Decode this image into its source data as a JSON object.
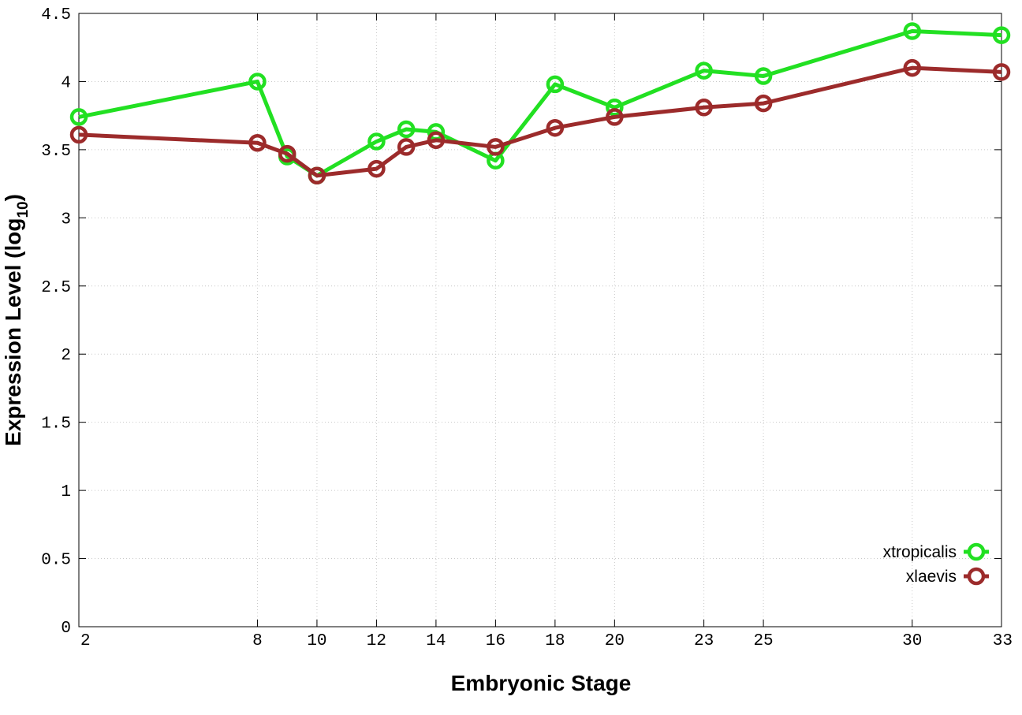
{
  "chart_data": {
    "type": "line",
    "title": "",
    "xlabel": "Embryonic Stage",
    "ylabel": {
      "main": "Expression Level (log",
      "subscript": "10",
      "close": ")"
    },
    "x": [
      2,
      8,
      9,
      10,
      12,
      13,
      14,
      16,
      18,
      20,
      23,
      25,
      30,
      33
    ],
    "xticks": [
      "2",
      "8",
      "10",
      "12",
      "14",
      "16",
      "18",
      "20",
      "23",
      "25",
      "30",
      "33"
    ],
    "yticks": [
      "0",
      "0.5",
      "1",
      "1.5",
      "2",
      "2.5",
      "3",
      "3.5",
      "4",
      "4.5"
    ],
    "ylim": [
      0,
      4.5
    ],
    "xlim": [
      2,
      33
    ],
    "grid": true,
    "legend_position": "bottom-right",
    "series": [
      {
        "name": "xtropicalis",
        "color": "#22e022",
        "values": [
          3.74,
          4.0,
          3.45,
          3.31,
          3.56,
          3.65,
          3.63,
          3.42,
          3.98,
          3.81,
          4.08,
          4.04,
          4.37,
          4.34
        ]
      },
      {
        "name": "xlaevis",
        "color": "#9c2b2b",
        "values": [
          3.61,
          3.55,
          3.47,
          3.31,
          3.36,
          3.52,
          3.57,
          3.52,
          3.66,
          3.74,
          3.81,
          3.84,
          4.1,
          4.07
        ]
      }
    ]
  }
}
